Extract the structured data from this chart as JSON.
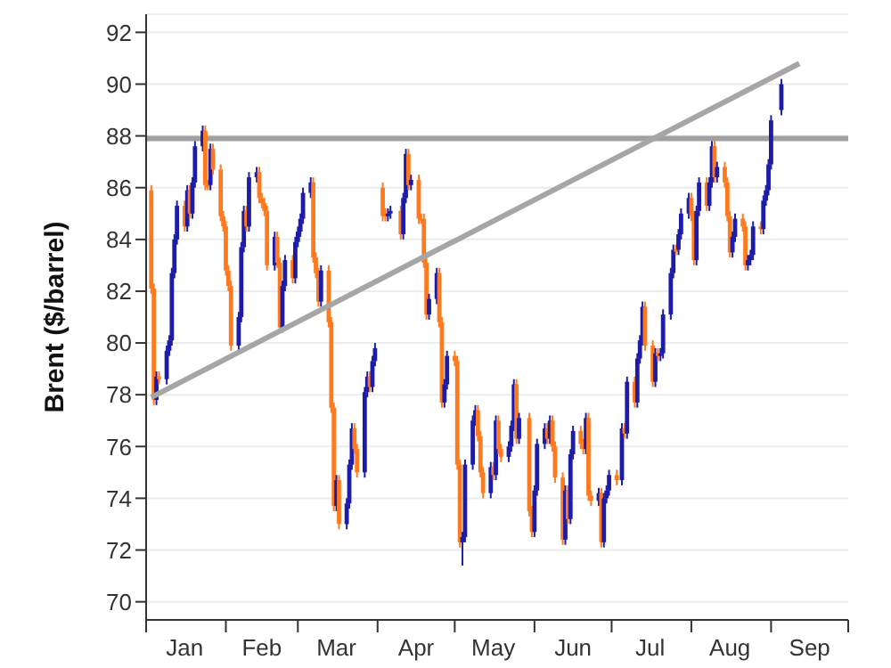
{
  "chart_data": {
    "type": "candlestick",
    "ylabel": "Brent ($/barrel)",
    "x": [
      "--01-03",
      "--01-04",
      "--01-05",
      "--01-06",
      "--01-09",
      "--01-10",
      "--01-11",
      "--01-12",
      "--01-13",
      "--01-16",
      "--01-17",
      "--01-18",
      "--01-19",
      "--01-20",
      "--01-23",
      "--01-24",
      "--01-25",
      "--01-26",
      "--01-27",
      "--01-30",
      "--01-31",
      "--02-01",
      "--02-02",
      "--02-03",
      "--02-06",
      "--02-07",
      "--02-08",
      "--02-09",
      "--02-10",
      "--02-13",
      "--02-14",
      "--02-15",
      "--02-16",
      "--02-17",
      "--02-20",
      "--02-21",
      "--02-22",
      "--02-23",
      "--02-24",
      "--02-27",
      "--02-28",
      "--03-01",
      "--03-02",
      "--03-03",
      "--03-06",
      "--03-07",
      "--03-08",
      "--03-09",
      "--03-10",
      "--03-13",
      "--03-14",
      "--03-15",
      "--03-16",
      "--03-17",
      "--03-20",
      "--03-21",
      "--03-22",
      "--03-23",
      "--03-24",
      "--03-27",
      "--03-28",
      "--03-29",
      "--03-30",
      "--03-31",
      "--04-03",
      "--04-04",
      "--04-05",
      "--04-06",
      "--04-10",
      "--04-11",
      "--04-12",
      "--04-13",
      "--04-14",
      "--04-17",
      "--04-18",
      "--04-19",
      "--04-20",
      "--04-21",
      "--04-24",
      "--04-25",
      "--04-26",
      "--04-27",
      "--04-28",
      "--05-01",
      "--05-02",
      "--05-03",
      "--05-04",
      "--05-05",
      "--05-08",
      "--05-09",
      "--05-10",
      "--05-11",
      "--05-12",
      "--05-15",
      "--05-16",
      "--05-17",
      "--05-18",
      "--05-19",
      "--05-22",
      "--05-23",
      "--05-24",
      "--05-25",
      "--05-26",
      "--05-30",
      "--05-31",
      "--06-01",
      "--06-02",
      "--06-05",
      "--06-06",
      "--06-07",
      "--06-08",
      "--06-09",
      "--06-12",
      "--06-13",
      "--06-14",
      "--06-15",
      "--06-16",
      "--06-19",
      "--06-20",
      "--06-21",
      "--06-22",
      "--06-23",
      "--06-26",
      "--06-27",
      "--06-28",
      "--06-29",
      "--06-30",
      "--07-03",
      "--07-05",
      "--07-06",
      "--07-07",
      "--07-10",
      "--07-11",
      "--07-12",
      "--07-13",
      "--07-14",
      "--07-17",
      "--07-18",
      "--07-19",
      "--07-20",
      "--07-21",
      "--07-24",
      "--07-25",
      "--07-26",
      "--07-27",
      "--07-28",
      "--07-31",
      "--08-01",
      "--08-02",
      "--08-03",
      "--08-04",
      "--08-07",
      "--08-08",
      "--08-09",
      "--08-10",
      "--08-11",
      "--08-14",
      "--08-15",
      "--08-16",
      "--08-17",
      "--08-18",
      "--08-21",
      "--08-22",
      "--08-23",
      "--08-24",
      "--08-25",
      "--08-28",
      "--08-29",
      "--08-30",
      "--08-31",
      "--09-01",
      "--09-05"
    ],
    "ohlc": [
      [
        85.9,
        86.1,
        81.9,
        82.1
      ],
      [
        82.1,
        82.3,
        77.6,
        77.8
      ],
      [
        77.8,
        78.9,
        77.6,
        78.7
      ],
      [
        78.7,
        78.9,
        78.4,
        78.6
      ],
      [
        78.6,
        79.9,
        78.4,
        79.7
      ],
      [
        79.7,
        80.3,
        79.5,
        80.1
      ],
      [
        80.1,
        82.9,
        79.9,
        82.7
      ],
      [
        82.7,
        84.2,
        82.5,
        84.0
      ],
      [
        84.0,
        85.5,
        83.8,
        85.3
      ],
      [
        85.3,
        85.5,
        84.3,
        84.5
      ],
      [
        84.5,
        86.1,
        84.3,
        85.9
      ],
      [
        85.9,
        86.1,
        84.8,
        85.0
      ],
      [
        85.0,
        86.4,
        84.8,
        86.2
      ],
      [
        86.2,
        87.8,
        86.0,
        87.6
      ],
      [
        87.6,
        88.4,
        87.4,
        88.2
      ],
      [
        88.2,
        88.4,
        85.9,
        86.1
      ],
      [
        86.1,
        86.3,
        85.9,
        86.1
      ],
      [
        86.1,
        87.7,
        85.9,
        87.5
      ],
      [
        87.5,
        87.7,
        86.5,
        86.7
      ],
      [
        86.7,
        86.9,
        84.7,
        84.9
      ],
      [
        84.9,
        85.1,
        84.3,
        84.5
      ],
      [
        84.5,
        84.7,
        82.6,
        82.8
      ],
      [
        82.8,
        83.0,
        82.0,
        82.2
      ],
      [
        82.2,
        82.4,
        79.7,
        79.9
      ],
      [
        79.9,
        81.2,
        79.7,
        81.0
      ],
      [
        81.0,
        83.9,
        80.8,
        83.7
      ],
      [
        83.7,
        85.3,
        83.5,
        85.1
      ],
      [
        85.1,
        85.3,
        84.3,
        84.5
      ],
      [
        84.5,
        86.6,
        84.3,
        86.4
      ],
      [
        86.4,
        86.8,
        86.2,
        86.6
      ],
      [
        86.6,
        86.8,
        85.4,
        85.6
      ],
      [
        85.6,
        85.8,
        85.2,
        85.4
      ],
      [
        85.4,
        85.6,
        84.9,
        85.1
      ],
      [
        85.1,
        85.3,
        82.8,
        83.0
      ],
      [
        83.0,
        84.3,
        82.8,
        84.1
      ],
      [
        84.1,
        84.3,
        82.9,
        83.1
      ],
      [
        83.1,
        83.3,
        80.4,
        80.6
      ],
      [
        80.6,
        82.4,
        80.4,
        82.2
      ],
      [
        82.2,
        83.4,
        82.0,
        83.2
      ],
      [
        83.2,
        83.4,
        82.3,
        82.5
      ],
      [
        82.5,
        84.1,
        82.3,
        83.9
      ],
      [
        83.9,
        84.5,
        83.7,
        84.3
      ],
      [
        84.3,
        85.0,
        84.1,
        84.8
      ],
      [
        84.8,
        86.0,
        84.6,
        85.8
      ],
      [
        85.8,
        86.4,
        85.6,
        86.2
      ],
      [
        86.2,
        86.4,
        83.1,
        83.3
      ],
      [
        83.3,
        83.5,
        82.5,
        82.7
      ],
      [
        82.7,
        82.9,
        81.4,
        81.6
      ],
      [
        81.6,
        83.0,
        81.4,
        82.8
      ],
      [
        82.8,
        83.0,
        80.6,
        80.8
      ],
      [
        80.8,
        81.0,
        77.3,
        77.5
      ],
      [
        77.5,
        77.7,
        73.5,
        73.7
      ],
      [
        73.7,
        74.9,
        73.5,
        74.7
      ],
      [
        74.7,
        74.9,
        72.8,
        73.0
      ],
      [
        73.0,
        74.0,
        72.8,
        73.8
      ],
      [
        73.8,
        75.5,
        73.6,
        75.3
      ],
      [
        75.3,
        76.9,
        75.1,
        76.7
      ],
      [
        76.7,
        76.9,
        75.7,
        75.9
      ],
      [
        75.9,
        76.1,
        74.8,
        75.0
      ],
      [
        75.0,
        78.3,
        74.8,
        78.1
      ],
      [
        78.1,
        78.9,
        77.9,
        78.7
      ],
      [
        78.7,
        78.9,
        78.1,
        78.3
      ],
      [
        78.3,
        79.5,
        78.1,
        79.3
      ],
      [
        79.3,
        80.0,
        79.1,
        79.8
      ],
      [
        86.0,
        86.2,
        84.7,
        84.9
      ],
      [
        85.0,
        85.2,
        84.7,
        84.9
      ],
      [
        84.9,
        85.2,
        84.7,
        85.0
      ],
      [
        85.0,
        85.3,
        84.8,
        85.1
      ],
      [
        85.1,
        85.3,
        84.0,
        84.2
      ],
      [
        84.2,
        85.8,
        84.0,
        85.6
      ],
      [
        85.6,
        87.5,
        85.4,
        87.3
      ],
      [
        87.3,
        87.5,
        85.9,
        86.1
      ],
      [
        86.1,
        86.5,
        85.9,
        86.3
      ],
      [
        86.3,
        86.5,
        84.6,
        84.8
      ],
      [
        84.8,
        85.0,
        84.6,
        84.8
      ],
      [
        84.8,
        85.0,
        82.9,
        83.1
      ],
      [
        83.1,
        83.3,
        80.9,
        81.1
      ],
      [
        81.1,
        81.9,
        80.9,
        81.7
      ],
      [
        81.7,
        82.9,
        81.5,
        82.7
      ],
      [
        82.7,
        82.9,
        80.6,
        80.8
      ],
      [
        80.8,
        81.0,
        77.5,
        77.7
      ],
      [
        77.7,
        78.6,
        77.5,
        78.4
      ],
      [
        78.4,
        79.7,
        78.2,
        79.5
      ],
      [
        79.5,
        79.7,
        79.1,
        79.3
      ],
      [
        79.3,
        79.5,
        75.1,
        75.3
      ],
      [
        75.3,
        75.5,
        72.1,
        72.3
      ],
      [
        72.3,
        72.7,
        71.4,
        72.5
      ],
      [
        72.5,
        75.5,
        72.3,
        75.3
      ],
      [
        75.3,
        77.2,
        75.1,
        77.0
      ],
      [
        77.0,
        77.6,
        76.8,
        77.4
      ],
      [
        77.4,
        77.6,
        76.2,
        76.4
      ],
      [
        76.4,
        76.6,
        74.8,
        75.0
      ],
      [
        75.0,
        75.2,
        74.0,
        74.2
      ],
      [
        74.2,
        75.4,
        74.0,
        75.2
      ],
      [
        75.2,
        75.4,
        74.7,
        74.9
      ],
      [
        74.9,
        77.2,
        74.7,
        77.0
      ],
      [
        77.0,
        77.2,
        75.7,
        75.9
      ],
      [
        75.9,
        76.1,
        75.4,
        75.6
      ],
      [
        75.6,
        76.2,
        75.4,
        76.0
      ],
      [
        76.0,
        77.0,
        75.8,
        76.8
      ],
      [
        76.8,
        78.6,
        76.6,
        78.4
      ],
      [
        78.4,
        78.6,
        76.1,
        76.3
      ],
      [
        76.3,
        77.3,
        76.1,
        77.1
      ],
      [
        77.1,
        77.3,
        73.3,
        73.5
      ],
      [
        73.5,
        73.7,
        72.5,
        72.7
      ],
      [
        72.7,
        74.5,
        72.5,
        74.3
      ],
      [
        74.3,
        76.3,
        74.1,
        76.1
      ],
      [
        76.1,
        76.9,
        75.9,
        76.7
      ],
      [
        76.7,
        76.9,
        76.1,
        76.3
      ],
      [
        76.3,
        77.2,
        76.1,
        77.0
      ],
      [
        77.0,
        77.2,
        75.8,
        76.0
      ],
      [
        76.0,
        76.2,
        74.6,
        74.8
      ],
      [
        74.8,
        75.0,
        72.2,
        72.4
      ],
      [
        72.4,
        74.5,
        72.2,
        74.3
      ],
      [
        74.3,
        74.5,
        73.0,
        73.2
      ],
      [
        73.2,
        75.9,
        73.0,
        75.7
      ],
      [
        75.7,
        76.8,
        75.5,
        76.6
      ],
      [
        76.6,
        76.8,
        75.9,
        76.1
      ],
      [
        76.1,
        76.3,
        75.7,
        75.9
      ],
      [
        75.9,
        77.3,
        75.7,
        77.1
      ],
      [
        77.1,
        77.3,
        73.9,
        74.1
      ],
      [
        74.1,
        74.3,
        73.7,
        73.9
      ],
      [
        73.9,
        74.4,
        73.7,
        74.2
      ],
      [
        74.2,
        74.4,
        72.1,
        72.3
      ],
      [
        72.3,
        74.2,
        72.1,
        74.0
      ],
      [
        74.0,
        74.5,
        73.8,
        74.3
      ],
      [
        74.3,
        75.1,
        74.1,
        74.9
      ],
      [
        74.9,
        75.1,
        74.5,
        74.7
      ],
      [
        74.7,
        76.9,
        74.5,
        76.7
      ],
      [
        76.7,
        76.9,
        76.3,
        76.5
      ],
      [
        76.5,
        78.7,
        76.3,
        78.5
      ],
      [
        78.5,
        78.7,
        77.5,
        77.7
      ],
      [
        77.7,
        79.6,
        77.5,
        79.4
      ],
      [
        79.4,
        80.3,
        79.2,
        80.1
      ],
      [
        80.1,
        81.6,
        79.9,
        81.4
      ],
      [
        81.4,
        81.6,
        79.7,
        79.9
      ],
      [
        79.9,
        80.1,
        78.3,
        78.5
      ],
      [
        78.5,
        79.8,
        78.3,
        79.6
      ],
      [
        79.6,
        79.8,
        79.3,
        79.5
      ],
      [
        79.5,
        79.8,
        79.3,
        79.6
      ],
      [
        79.6,
        81.3,
        79.4,
        81.1
      ],
      [
        81.1,
        82.9,
        80.9,
        82.7
      ],
      [
        82.7,
        83.8,
        82.5,
        83.6
      ],
      [
        83.6,
        83.8,
        83.4,
        83.6
      ],
      [
        83.6,
        84.4,
        83.4,
        84.2
      ],
      [
        84.2,
        85.2,
        84.0,
        85.0
      ],
      [
        85.0,
        85.8,
        84.8,
        85.6
      ],
      [
        85.6,
        85.8,
        84.7,
        84.9
      ],
      [
        84.9,
        85.1,
        83.0,
        83.2
      ],
      [
        83.2,
        85.3,
        83.0,
        85.1
      ],
      [
        85.1,
        86.4,
        84.9,
        86.2
      ],
      [
        86.2,
        86.4,
        85.1,
        85.3
      ],
      [
        85.3,
        86.4,
        85.1,
        86.2
      ],
      [
        86.2,
        87.8,
        86.0,
        87.6
      ],
      [
        87.6,
        87.8,
        86.2,
        86.4
      ],
      [
        86.4,
        87.0,
        86.2,
        86.8
      ],
      [
        86.8,
        87.0,
        86.0,
        86.2
      ],
      [
        86.2,
        86.4,
        84.7,
        84.9
      ],
      [
        84.9,
        85.1,
        83.3,
        83.5
      ],
      [
        83.5,
        84.3,
        83.3,
        84.1
      ],
      [
        84.1,
        85.0,
        83.9,
        84.8
      ],
      [
        84.8,
        85.0,
        84.3,
        84.5
      ],
      [
        84.5,
        84.7,
        82.8,
        83.0
      ],
      [
        83.0,
        83.4,
        82.8,
        83.2
      ],
      [
        83.2,
        83.6,
        83.0,
        83.4
      ],
      [
        83.4,
        84.7,
        83.2,
        84.5
      ],
      [
        84.5,
        84.7,
        84.2,
        84.4
      ],
      [
        84.4,
        85.7,
        84.2,
        85.5
      ],
      [
        85.5,
        86.1,
        85.3,
        85.9
      ],
      [
        85.9,
        87.1,
        85.7,
        86.9
      ],
      [
        86.9,
        88.8,
        86.7,
        88.6
      ],
      [
        89.0,
        90.2,
        88.8,
        90.0
      ]
    ],
    "colors": [
      "#ff7a1f",
      "#ff7a1f",
      "#1c1ca8",
      "#ff7a1f",
      "#1c1ca8",
      "#1c1ca8",
      "#1c1ca8",
      "#1c1ca8",
      "#1c1ca8",
      "#ff7a1f",
      "#1c1ca8",
      "#ff7a1f",
      "#1c1ca8",
      "#1c1ca8",
      "#1c1ca8",
      "#ff7a1f",
      "#ff7a1f",
      "#1c1ca8",
      "#ff7a1f",
      "#ff7a1f",
      "#ff7a1f",
      "#ff7a1f",
      "#ff7a1f",
      "#ff7a1f",
      "#1c1ca8",
      "#1c1ca8",
      "#1c1ca8",
      "#ff7a1f",
      "#1c1ca8",
      "#1c1ca8",
      "#ff7a1f",
      "#ff7a1f",
      "#ff7a1f",
      "#ff7a1f",
      "#1c1ca8",
      "#ff7a1f",
      "#ff7a1f",
      "#1c1ca8",
      "#1c1ca8",
      "#ff7a1f",
      "#1c1ca8",
      "#1c1ca8",
      "#1c1ca8",
      "#1c1ca8",
      "#1c1ca8",
      "#ff7a1f",
      "#ff7a1f",
      "#ff7a1f",
      "#1c1ca8",
      "#ff7a1f",
      "#ff7a1f",
      "#ff7a1f",
      "#1c1ca8",
      "#ff7a1f",
      "#1c1ca8",
      "#1c1ca8",
      "#1c1ca8",
      "#ff7a1f",
      "#ff7a1f",
      "#1c1ca8",
      "#1c1ca8",
      "#ff7a1f",
      "#1c1ca8",
      "#1c1ca8",
      "#ff7a1f",
      "#ff7a1f",
      "#1c1ca8",
      "#1c1ca8",
      "#ff7a1f",
      "#1c1ca8",
      "#1c1ca8",
      "#ff7a1f",
      "#1c1ca8",
      "#ff7a1f",
      "#ff7a1f",
      "#ff7a1f",
      "#ff7a1f",
      "#1c1ca8",
      "#1c1ca8",
      "#ff7a1f",
      "#ff7a1f",
      "#1c1ca8",
      "#1c1ca8",
      "#ff7a1f",
      "#ff7a1f",
      "#ff7a1f",
      "#1c1ca8",
      "#1c1ca8",
      "#1c1ca8",
      "#1c1ca8",
      "#ff7a1f",
      "#ff7a1f",
      "#ff7a1f",
      "#1c1ca8",
      "#ff7a1f",
      "#1c1ca8",
      "#ff7a1f",
      "#ff7a1f",
      "#1c1ca8",
      "#1c1ca8",
      "#1c1ca8",
      "#ff7a1f",
      "#1c1ca8",
      "#ff7a1f",
      "#ff7a1f",
      "#1c1ca8",
      "#1c1ca8",
      "#1c1ca8",
      "#ff7a1f",
      "#1c1ca8",
      "#ff7a1f",
      "#ff7a1f",
      "#ff7a1f",
      "#1c1ca8",
      "#ff7a1f",
      "#1c1ca8",
      "#1c1ca8",
      "#ff7a1f",
      "#ff7a1f",
      "#1c1ca8",
      "#ff7a1f",
      "#ff7a1f",
      "#1c1ca8",
      "#ff7a1f",
      "#1c1ca8",
      "#1c1ca8",
      "#1c1ca8",
      "#ff7a1f",
      "#1c1ca8",
      "#ff7a1f",
      "#1c1ca8",
      "#ff7a1f",
      "#1c1ca8",
      "#1c1ca8",
      "#1c1ca8",
      "#ff7a1f",
      "#ff7a1f",
      "#1c1ca8",
      "#ff7a1f",
      "#1c1ca8",
      "#1c1ca8",
      "#1c1ca8",
      "#1c1ca8",
      "#ff7a1f",
      "#1c1ca8",
      "#1c1ca8",
      "#1c1ca8",
      "#ff7a1f",
      "#ff7a1f",
      "#1c1ca8",
      "#1c1ca8",
      "#ff7a1f",
      "#1c1ca8",
      "#1c1ca8",
      "#ff7a1f",
      "#1c1ca8",
      "#ff7a1f",
      "#ff7a1f",
      "#ff7a1f",
      "#1c1ca8",
      "#1c1ca8",
      "#ff7a1f",
      "#ff7a1f",
      "#1c1ca8",
      "#1c1ca8",
      "#1c1ca8",
      "#ff7a1f",
      "#1c1ca8",
      "#1c1ca8",
      "#1c1ca8",
      "#1c1ca8",
      "#1c1ca8"
    ],
    "series": [
      {
        "type": "line",
        "x": [
          "--01-03",
          "--09-12"
        ],
        "values": [
          77.9,
          90.8
        ],
        "color": "#a6a6a6"
      }
    ],
    "ref_lines": [
      {
        "axis": "y",
        "value": 87.9,
        "color": "#a0a0a0"
      }
    ],
    "xlim": [
      "--01-01",
      "--10-01"
    ],
    "xticks": [
      {
        "value": "--01-01",
        "label": null
      },
      {
        "value": "--01-16",
        "label": "Jan"
      },
      {
        "value": "--02-01",
        "label": null
      },
      {
        "value": "--02-15",
        "label": "Feb"
      },
      {
        "value": "--03-01",
        "label": null
      },
      {
        "value": "--03-16",
        "label": "Mar"
      },
      {
        "value": "--04-01",
        "label": null
      },
      {
        "value": "--04-16",
        "label": "Apr"
      },
      {
        "value": "--05-01",
        "label": null
      },
      {
        "value": "--05-16",
        "label": "May"
      },
      {
        "value": "--06-01",
        "label": null
      },
      {
        "value": "--06-16",
        "label": "Jun"
      },
      {
        "value": "--07-01",
        "label": null
      },
      {
        "value": "--07-16",
        "label": "Jul"
      },
      {
        "value": "--08-01",
        "label": null
      },
      {
        "value": "--08-16",
        "label": "Aug"
      },
      {
        "value": "--09-01",
        "label": null
      },
      {
        "value": "--09-16",
        "label": "Sep"
      },
      {
        "value": "--10-01",
        "label": null
      }
    ],
    "ylim": [
      69.3,
      92.7
    ],
    "yticks": [
      70,
      72,
      74,
      76,
      78,
      80,
      82,
      84,
      86,
      88,
      90,
      92
    ],
    "grid": "y"
  }
}
